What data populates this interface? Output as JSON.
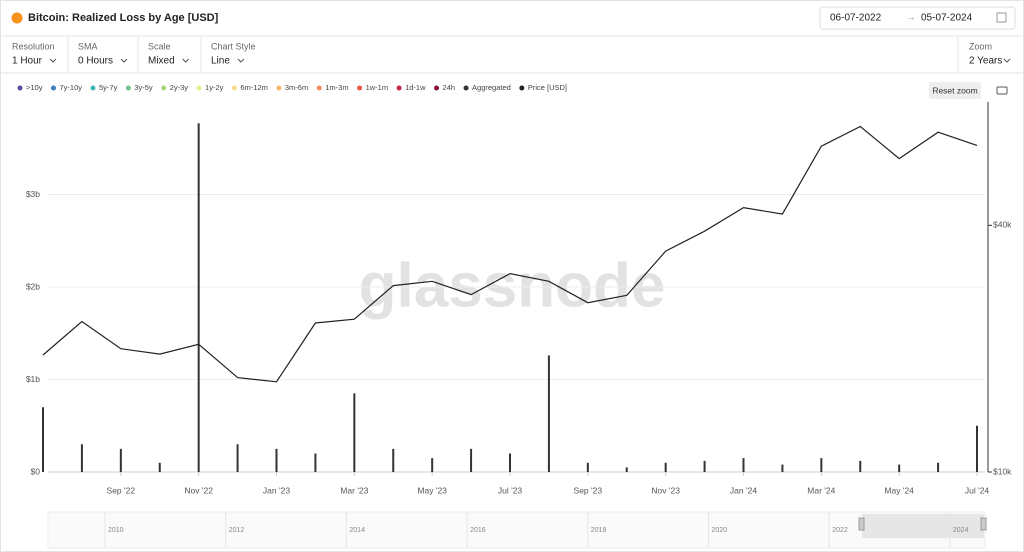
{
  "header": {
    "title": "Bitcoin: Realized Loss by Age [USD]",
    "date_from": "06-07-2022",
    "date_to": "05-07-2024"
  },
  "controls": [
    {
      "label": "Resolution",
      "value": "1 Hour"
    },
    {
      "label": "SMA",
      "value": "0 Hours"
    },
    {
      "label": "Scale",
      "value": "Mixed"
    },
    {
      "label": "Chart Style",
      "value": "Line"
    }
  ],
  "zoom": {
    "label": "Zoom",
    "value": "2 Years"
  },
  "reset_button": "Reset zoom",
  "watermark": "glassnode",
  "legend": [
    {
      "label": ">10y",
      "color": "#5b4a9e"
    },
    {
      "label": "7y-10y",
      "color": "#3c7dc4"
    },
    {
      "label": "5y-7y",
      "color": "#3fb6b0"
    },
    {
      "label": "3y-5y",
      "color": "#70c18c"
    },
    {
      "label": "2y-3y",
      "color": "#a9d678"
    },
    {
      "label": "1y-2y",
      "color": "#e4ec8c"
    },
    {
      "label": "6m-12m",
      "color": "#f8de8b"
    },
    {
      "label": "3m-6m",
      "color": "#f7b86b"
    },
    {
      "label": "1m-3m",
      "color": "#f28b5a"
    },
    {
      "label": "1w-1m",
      "color": "#e9574a"
    },
    {
      "label": "1d-1w",
      "color": "#c9254a"
    },
    {
      "label": "24h",
      "color": "#8c0e3d"
    }
  ],
  "navigator": {
    "labels": [
      "2010",
      "2012",
      "2014",
      "2016",
      "2018",
      "2020",
      "2022",
      "2024"
    ]
  },
  "chart_data": {
    "type": "line",
    "x": [
      "2022-07",
      "2022-08",
      "2022-09",
      "2022-10",
      "2022-11",
      "2022-12",
      "2023-01",
      "2023-02",
      "2023-03",
      "2023-04",
      "2023-05",
      "2023-06",
      "2023-07",
      "2023-08",
      "2023-09",
      "2023-10",
      "2023-11",
      "2023-12",
      "2024-01",
      "2024-02",
      "2024-03",
      "2024-04",
      "2024-05",
      "2024-06",
      "2024-07"
    ],
    "xlim": [
      "2022-07",
      "2024-07"
    ],
    "xticks": [
      {
        "value": "2022-09",
        "label": "Sep '22"
      },
      {
        "value": "2022-11",
        "label": "Nov '22"
      },
      {
        "value": "2023-01",
        "label": "Jan '23"
      },
      {
        "value": "2023-03",
        "label": "Mar '23"
      },
      {
        "value": "2023-05",
        "label": "May '23"
      },
      {
        "value": "2023-07",
        "label": "Jul '23"
      },
      {
        "value": "2023-09",
        "label": "Sep '23"
      },
      {
        "value": "2023-11",
        "label": "Nov '23"
      },
      {
        "value": "2024-01",
        "label": "Jan '24"
      },
      {
        "value": "2024-03",
        "label": "Mar '24"
      },
      {
        "value": "2024-05",
        "label": "May '24"
      },
      {
        "value": "2024-07",
        "label": "Jul '24"
      }
    ],
    "ylim": [
      0,
      4000000000
    ],
    "yticks": [
      {
        "value": 0,
        "label": "$0"
      },
      {
        "value": 1000000000,
        "label": "$1b"
      },
      {
        "value": 2000000000,
        "label": "$2b"
      },
      {
        "value": 3000000000,
        "label": "$3b"
      }
    ],
    "y2lim": [
      10000,
      80000
    ],
    "y2scale": "log",
    "y2ticks": [
      {
        "value": 10000,
        "label": "$10k"
      },
      {
        "value": 40000,
        "label": "$40k"
      }
    ],
    "grid": true,
    "series": [
      {
        "name": "Aggregated",
        "color": "#333333",
        "style": "bar",
        "values": [
          700000000,
          300000000,
          250000000,
          100000000,
          3770000000,
          300000000,
          250000000,
          200000000,
          850000000,
          250000000,
          150000000,
          250000000,
          200000000,
          1260000000,
          100000000,
          50000000,
          100000000,
          120000000,
          150000000,
          80000000,
          150000000,
          120000000,
          80000000,
          100000000,
          500000000
        ]
      },
      {
        "name": "Price [USD]",
        "color": "#222222",
        "axis": "y2",
        "values": [
          19300,
          23300,
          20000,
          19400,
          20500,
          17000,
          16600,
          23100,
          23600,
          28500,
          29200,
          27100,
          30500,
          29200,
          25900,
          27000,
          34600,
          38700,
          44200,
          42600,
          62400,
          69700,
          58200,
          67500,
          62700
        ]
      }
    ]
  }
}
